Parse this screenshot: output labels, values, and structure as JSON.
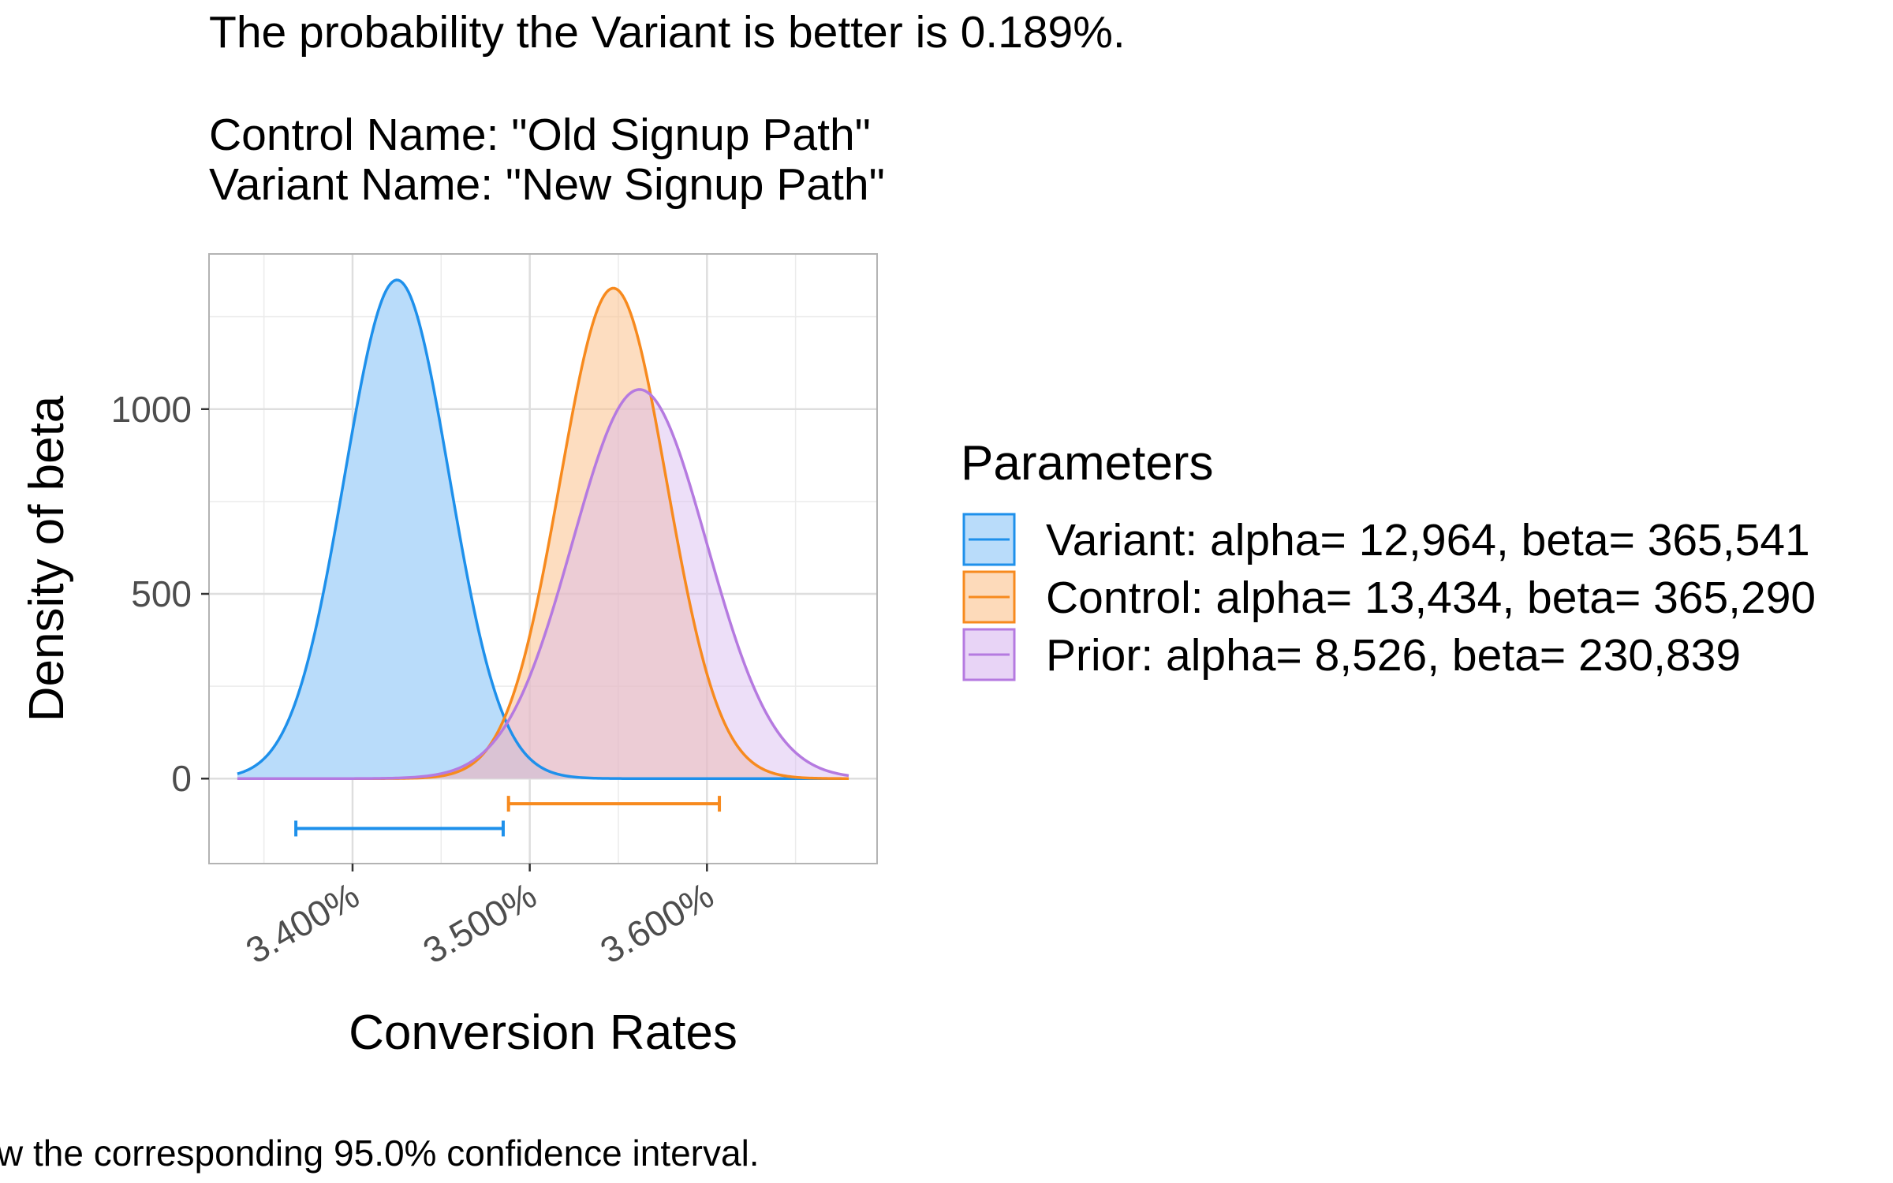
{
  "chart_data": {
    "type": "area",
    "title_lines": [
      "The probability the Variant is better is 0.189%.",
      "",
      "Control Name: \"Old Signup Path\"",
      "Variant Name: \"New Signup Path\""
    ],
    "xlabel": "Conversion Rates",
    "ylabel": "Density of beta",
    "xlim": [
      0.03319,
      0.03696
    ],
    "ylim": [
      -230,
      1420
    ],
    "x_ticks": [
      {
        "value": 0.034,
        "label": "3.400%"
      },
      {
        "value": 0.035,
        "label": "3.500%"
      },
      {
        "value": 0.036,
        "label": "3.600%"
      }
    ],
    "y_ticks": [
      {
        "value": 0,
        "label": "0"
      },
      {
        "value": 500,
        "label": "500"
      },
      {
        "value": 1000,
        "label": "1000"
      }
    ],
    "grid": true,
    "legend": {
      "title": "Parameters",
      "placement": "right"
    },
    "series": [
      {
        "name": "Variant: alpha= 12,964, beta= 365,541",
        "alpha": 12964,
        "beta": 365541,
        "color": "#1E90EB",
        "fill": "#B9DCFA",
        "fill_opacity": 1,
        "density_range": [
          0.03335,
          0.0368
        ],
        "interval": [
          0.03368,
          0.03485
        ],
        "interval_y": -135
      },
      {
        "name": "Control: alpha= 13,434, beta= 365,290",
        "alpha": 13434,
        "beta": 365290,
        "color": "#F78A1E",
        "fill": "#FBC18C",
        "fill_opacity": 0.55,
        "density_range": [
          0.03335,
          0.0368
        ],
        "interval": [
          0.03488,
          0.03607
        ],
        "interval_y": -68
      },
      {
        "name": "Prior: alpha= 8,526, beta= 230,839",
        "alpha": 8526,
        "beta": 230839,
        "color": "#B57AE0",
        "fill": "#D8B8F0",
        "fill_opacity": 0.45,
        "density_range": [
          0.03335,
          0.0368
        ]
      }
    ],
    "caption": "w the corresponding 95.0% confidence interval."
  }
}
